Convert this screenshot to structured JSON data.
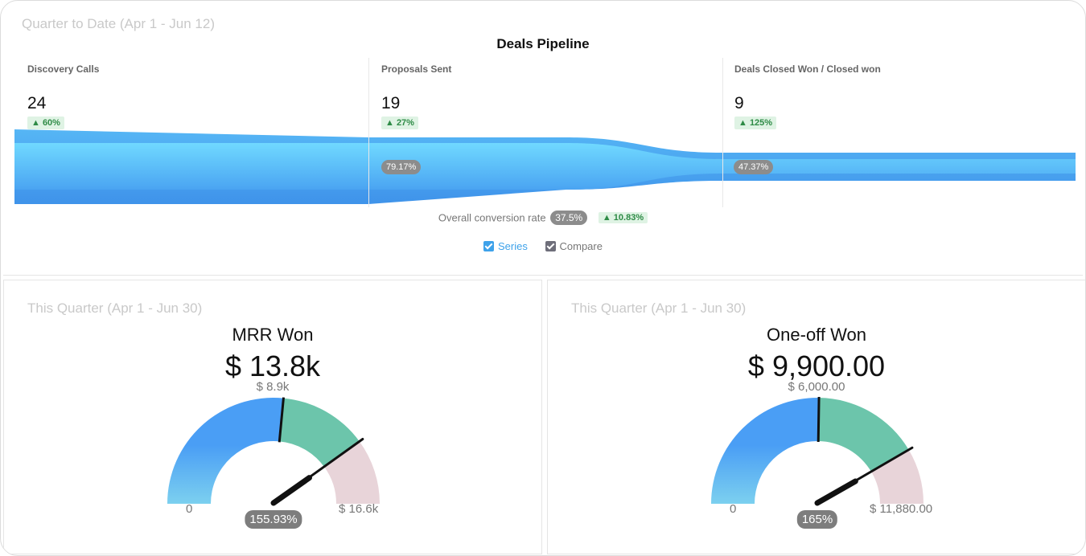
{
  "pipeline": {
    "subtitle": "Quarter to Date (Apr 1 - Jun 12)",
    "title": "Deals Pipeline",
    "stages": [
      {
        "label": "Discovery Calls",
        "value": "24",
        "delta": "▲ 60%"
      },
      {
        "label": "Proposals Sent",
        "value": "19",
        "delta": "▲ 27%"
      },
      {
        "label": "Deals Closed Won / Closed won",
        "value": "9",
        "delta": "▲ 125%"
      }
    ],
    "conversions": [
      "79.17%",
      "47.37%"
    ],
    "overall_label": "Overall conversion rate",
    "overall_value": "37.5%",
    "overall_delta": "▲ 10.83%",
    "legend": [
      {
        "label": "Series",
        "color": "#3ea2ea",
        "checked": true
      },
      {
        "label": "Compare",
        "color": "#6e6e7a",
        "checked": true
      }
    ],
    "colors": {
      "funnel_light": "#6fd6ff",
      "funnel_dark": "#4a9ef0",
      "funnel_mid": "#5bbcf7"
    }
  },
  "gauges": [
    {
      "subtitle": "This Quarter (Apr 1 - Jun 30)",
      "title": "MRR Won",
      "value": "$ 13.8k",
      "target": "$ 8.9k",
      "min": "0",
      "max": "$ 16.6k",
      "percent": "155.93%",
      "fraction": 0.8,
      "target_fraction": 0.53
    },
    {
      "subtitle": "This Quarter (Apr 1 - Jun 30)",
      "title": "One-off Won",
      "value": "$ 9,900.00",
      "target": "$ 6,000.00",
      "min": "0",
      "max": "$ 11,880.00",
      "percent": "165%",
      "fraction": 0.83,
      "target_fraction": 0.505
    }
  ],
  "gauge_colors": {
    "blue": "#4a9ef5",
    "blue_light": "#7cd0ef",
    "green": "#6cc5ab",
    "pink": "#e8d4d9",
    "needle": "#111111"
  }
}
